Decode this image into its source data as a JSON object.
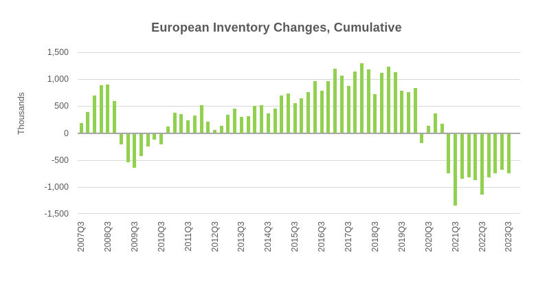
{
  "chart": {
    "title": "European Inventory Changes, Cumulative",
    "y_axis_title": "Thousands",
    "colors": {
      "bar_fill": "#92d050",
      "gridline": "#d9d9d9",
      "zero_axis": "#a6a6a6",
      "text": "#595959",
      "background": "#ffffff"
    }
  },
  "chart_data": {
    "type": "bar",
    "title": "European Inventory Changes, Cumulative",
    "xlabel": "",
    "ylabel": "Thousands",
    "units": "Thousands",
    "ylim": [
      -1500,
      1500
    ],
    "y_tick_interval": 500,
    "y_tick_labels": [
      "1,500",
      "1,000",
      "500",
      "0",
      "-500",
      "-1,000",
      "-1,500"
    ],
    "x_tick_labels_shown": [
      "2007Q3",
      "2008Q3",
      "2009Q3",
      "2010Q3",
      "2011Q3",
      "2012Q3",
      "2013Q3",
      "2014Q3",
      "2015Q3",
      "2016Q3",
      "2017Q3",
      "2018Q3",
      "2019Q3",
      "2020Q3",
      "2021Q3",
      "2022Q3",
      "2023Q3"
    ],
    "x_tick_every_n_bars": 4,
    "grid": true,
    "legend_position": "none",
    "x": [
      "2007Q3",
      "2007Q4",
      "2008Q1",
      "2008Q2",
      "2008Q3",
      "2008Q4",
      "2009Q1",
      "2009Q2",
      "2009Q3",
      "2009Q4",
      "2010Q1",
      "2010Q2",
      "2010Q3",
      "2010Q4",
      "2011Q1",
      "2011Q2",
      "2011Q3",
      "2011Q4",
      "2012Q1",
      "2012Q2",
      "2012Q3",
      "2012Q4",
      "2013Q1",
      "2013Q2",
      "2013Q3",
      "2013Q4",
      "2014Q1",
      "2014Q2",
      "2014Q3",
      "2014Q4",
      "2015Q1",
      "2015Q2",
      "2015Q3",
      "2015Q4",
      "2016Q1",
      "2016Q2",
      "2016Q3",
      "2016Q4",
      "2017Q1",
      "2017Q2",
      "2017Q3",
      "2017Q4",
      "2018Q1",
      "2018Q2",
      "2018Q3",
      "2018Q4",
      "2019Q1",
      "2019Q2",
      "2019Q3",
      "2019Q4",
      "2020Q1",
      "2020Q2",
      "2020Q3",
      "2020Q4",
      "2021Q1",
      "2021Q2",
      "2021Q3",
      "2021Q4",
      "2022Q1",
      "2022Q2",
      "2022Q3",
      "2022Q4",
      "2023Q1",
      "2023Q2",
      "2023Q3"
    ],
    "values": [
      190,
      390,
      690,
      890,
      900,
      590,
      -200,
      -530,
      -630,
      -420,
      -240,
      -110,
      -200,
      120,
      380,
      350,
      240,
      320,
      520,
      210,
      60,
      140,
      340,
      450,
      300,
      310,
      500,
      520,
      370,
      450,
      690,
      730,
      560,
      650,
      760,
      970,
      790,
      960,
      1190,
      1070,
      880,
      1140,
      1300,
      1180,
      720,
      1120,
      1230,
      1130,
      790,
      760,
      840,
      -170,
      130,
      370,
      170,
      -740,
      -1330,
      -840,
      -810,
      -860,
      -1130,
      -810,
      -740,
      -670,
      -740
    ]
  }
}
